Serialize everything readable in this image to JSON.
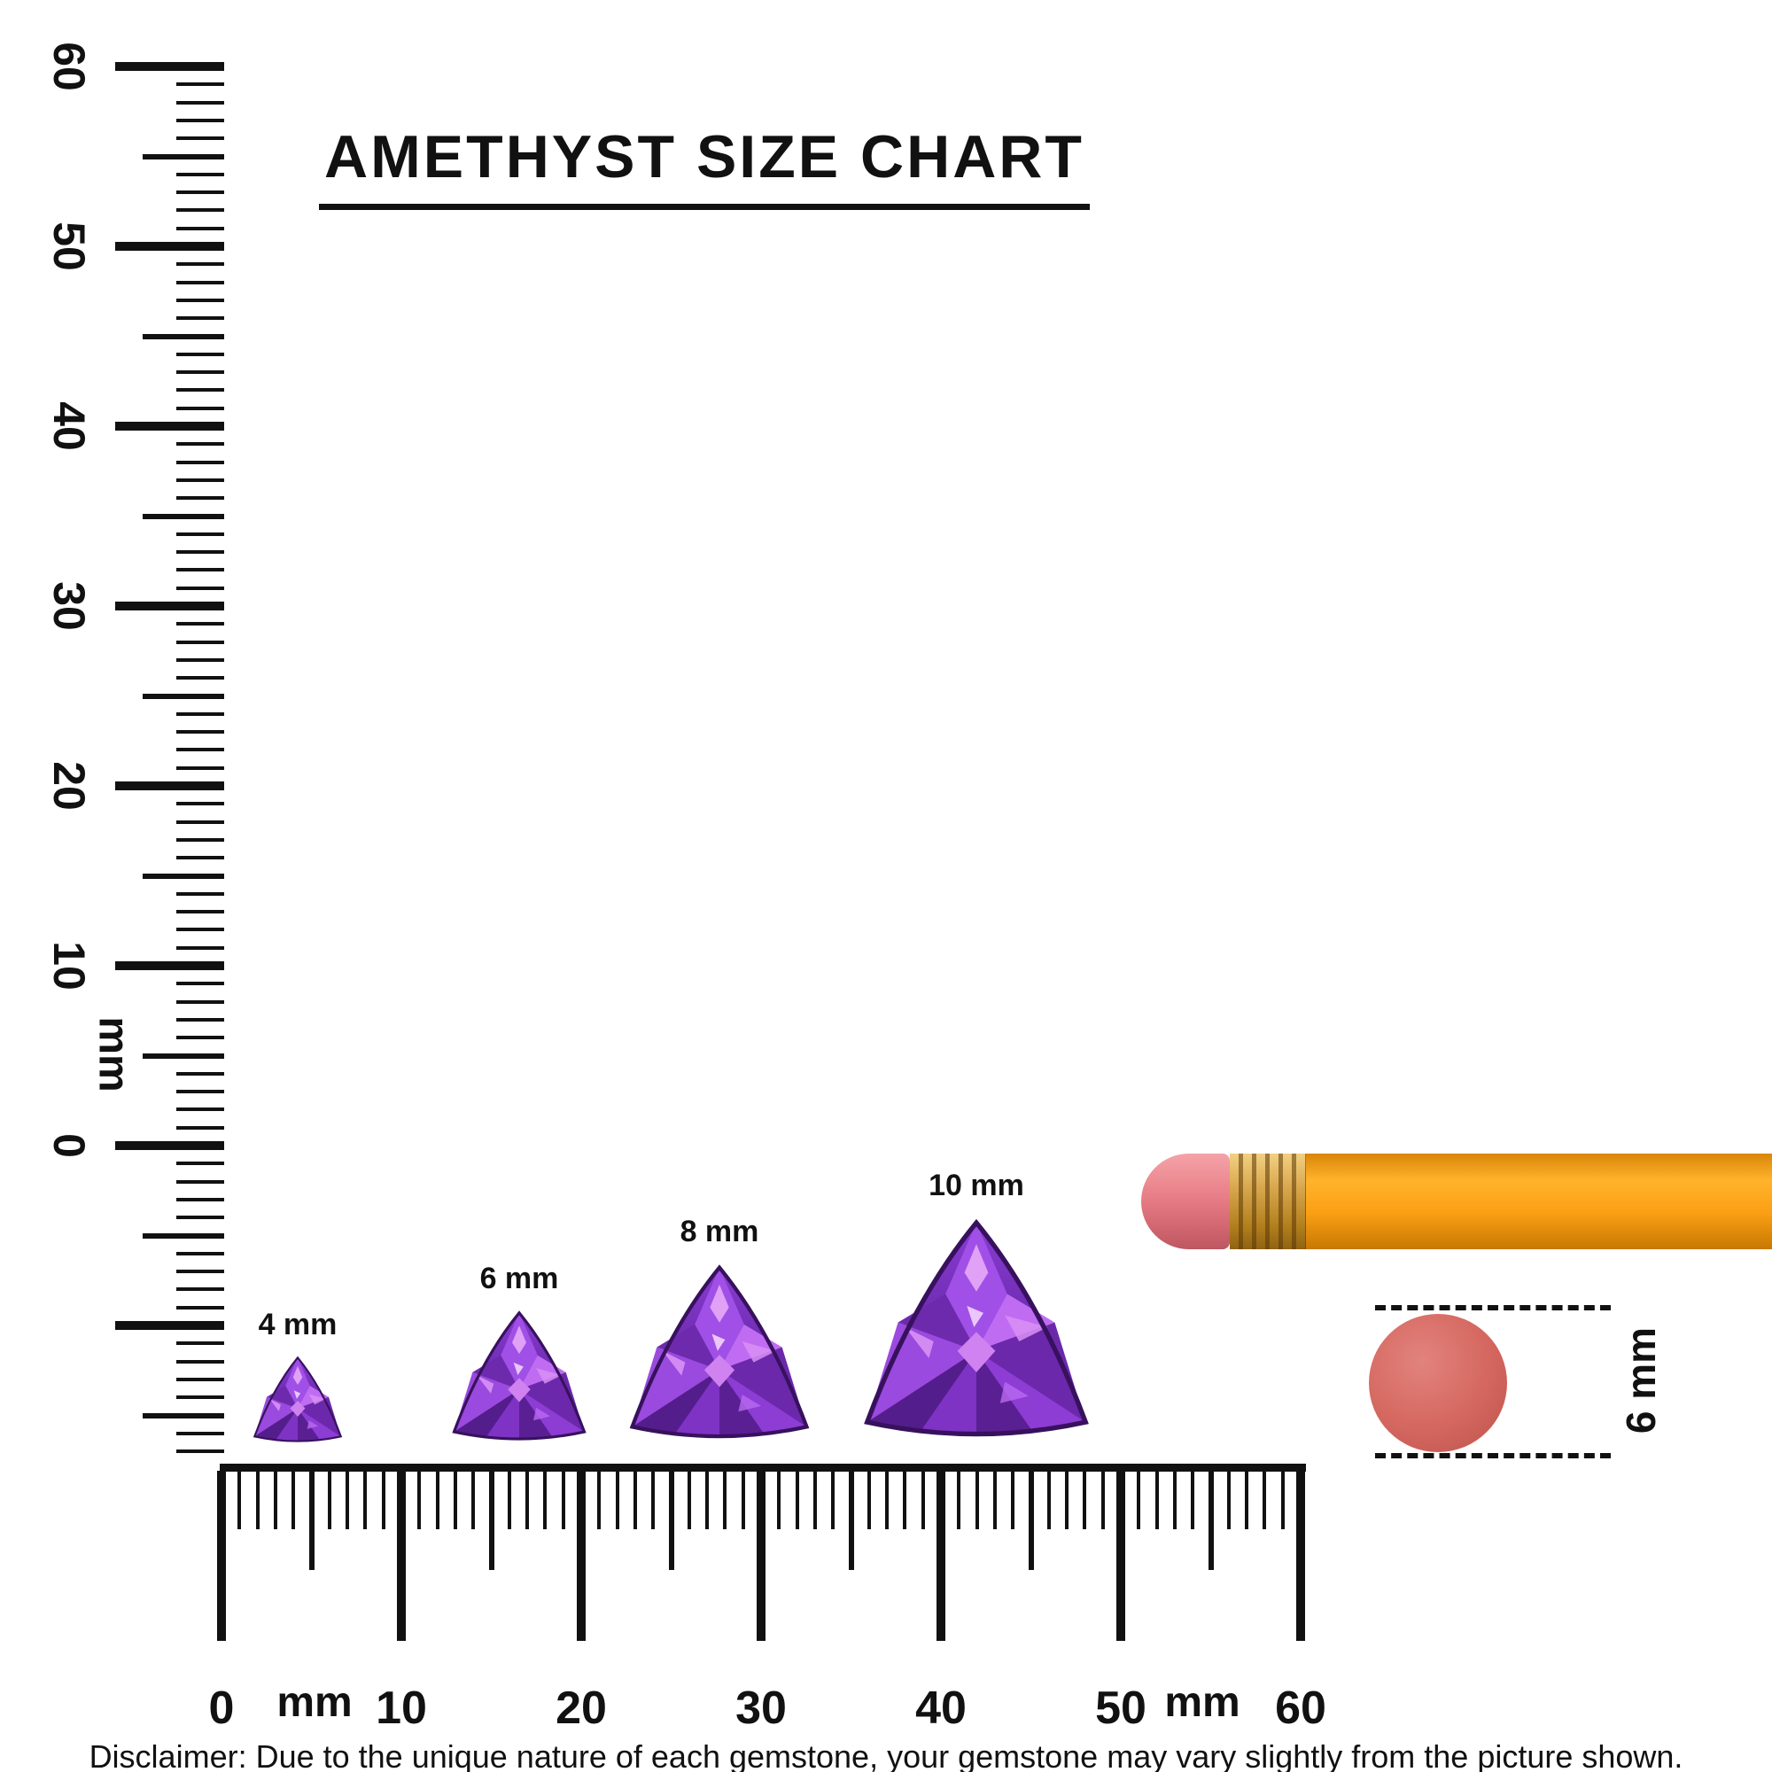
{
  "title": "AMETHYST SIZE CHART",
  "vertical_ruler": {
    "unit_label": "mm",
    "tick_labels": [
      "60",
      "50",
      "40",
      "30",
      "20",
      "10",
      "0"
    ]
  },
  "horizontal_ruler": {
    "unit_label_left": "mm",
    "unit_label_right": "mm",
    "tick_labels": [
      "0",
      "10",
      "20",
      "30",
      "40",
      "50",
      "60"
    ]
  },
  "gems": [
    {
      "label": "4 mm",
      "size_mm": 4,
      "shape": "trillion"
    },
    {
      "label": "6 mm",
      "size_mm": 6,
      "shape": "trillion"
    },
    {
      "label": "8 mm",
      "size_mm": 8,
      "shape": "trillion"
    },
    {
      "label": "10 mm",
      "size_mm": 10,
      "shape": "trillion"
    }
  ],
  "comparison": {
    "label": "6 mm",
    "size_mm": 6
  },
  "disclaimer": "Disclaimer: Due to the unique nature of each gemstone, your gemstone may vary slightly from the picture shown.",
  "colors": {
    "ink": "#111111",
    "amethyst_primary": "#7b2fc0",
    "pencil_orange": "#f9a11b",
    "eraser_pink": "#e87e87",
    "eraser_red": "#d4675f"
  }
}
